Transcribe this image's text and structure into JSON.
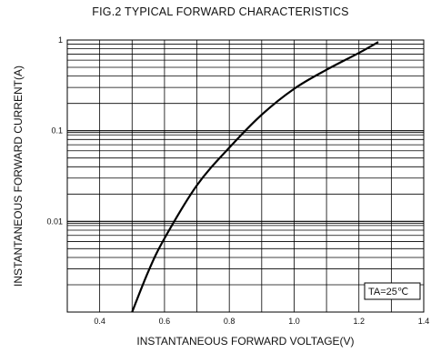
{
  "chart_data": {
    "type": "line",
    "title": "FIG.2 TYPICAL FORWARD CHARACTERISTICS",
    "xlabel": "INSTANTANEOUS  FORWARD  VOLTAGE(V)",
    "ylabel": "INSTANTANEOUS  FORWARD CURRENT(A)",
    "x_scale": "linear",
    "y_scale": "log",
    "xlim": [
      0.3,
      1.4
    ],
    "ylim": [
      0.001,
      1
    ],
    "x_ticks": [
      0.4,
      0.6,
      0.8,
      1.0,
      1.2,
      1.4
    ],
    "x_tick_labels": [
      "0.4",
      "0.6",
      "0.8",
      "1.0",
      "1.2",
      "1.4"
    ],
    "y_ticks": [
      1,
      0.1,
      0.01
    ],
    "y_tick_labels": [
      "1",
      "0.1",
      "0.01"
    ],
    "grid": true,
    "annotation": "TA=25℃",
    "series": [
      {
        "x": [
          0.5,
          0.55,
          0.6,
          0.7,
          0.8,
          0.9,
          1.0,
          1.1,
          1.2,
          1.26
        ],
        "y": [
          0.001,
          0.0028,
          0.0065,
          0.025,
          0.065,
          0.15,
          0.29,
          0.47,
          0.72,
          0.95
        ],
        "color": "#000000"
      }
    ]
  }
}
